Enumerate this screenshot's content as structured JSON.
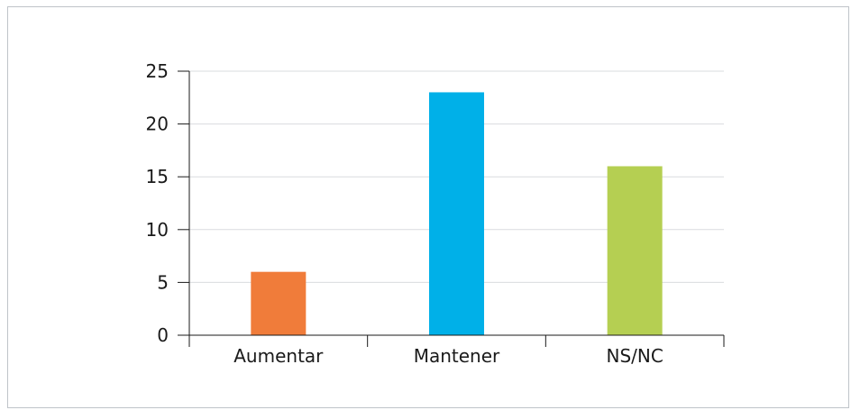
{
  "chart_data": {
    "type": "bar",
    "title": "",
    "xlabel": "",
    "ylabel": "",
    "categories": [
      "Aumentar",
      "Mantener",
      "NS/NC"
    ],
    "values": [
      6,
      23,
      16
    ],
    "colors": [
      "#f07c3a",
      "#00b0e8",
      "#b5cf52"
    ],
    "ylim": [
      0,
      25
    ],
    "yticks": [
      "0",
      "5",
      "10",
      "15",
      "20",
      "25"
    ],
    "grid": true,
    "legend": "none"
  }
}
